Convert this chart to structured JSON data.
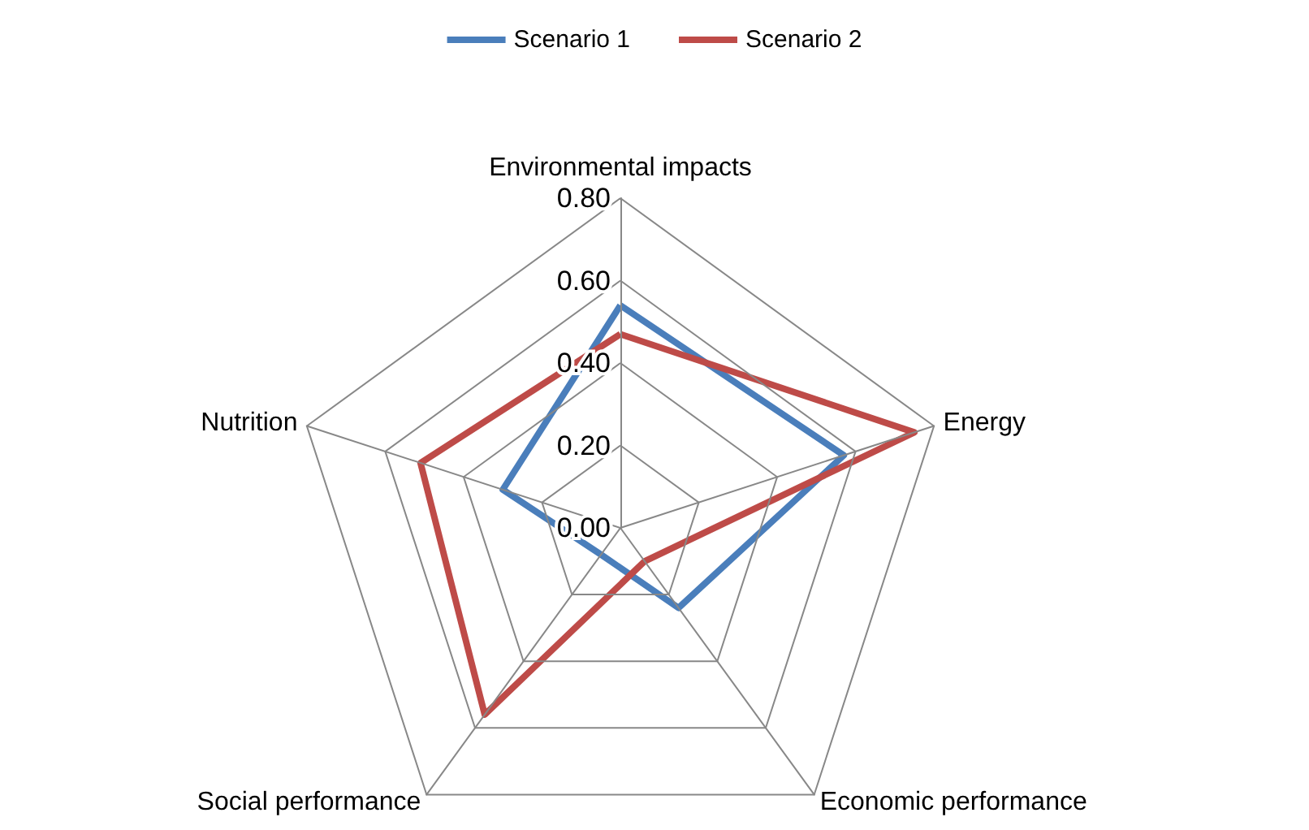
{
  "chart_data": {
    "type": "radar",
    "categories": [
      "Environmental impacts",
      "Energy",
      "Economic performance",
      "Social performance",
      "Nutrition"
    ],
    "series": [
      {
        "name": "Scenario 1",
        "color": "#4a7ebb",
        "values": [
          0.54,
          0.57,
          0.24,
          0.08,
          0.3
        ]
      },
      {
        "name": "Scenario 2",
        "color": "#be4b48",
        "values": [
          0.47,
          0.75,
          0.1,
          0.56,
          0.51
        ]
      }
    ],
    "ylim": [
      0,
      0.8
    ],
    "yticks": [
      {
        "value": 0,
        "label": "0.00"
      },
      {
        "value": 0.2,
        "label": "0.20"
      },
      {
        "value": 0.4,
        "label": "0.40"
      },
      {
        "value": 0.6,
        "label": "0.60"
      },
      {
        "value": 0.8,
        "label": "0.80"
      }
    ],
    "legend": "top",
    "grid": true
  }
}
